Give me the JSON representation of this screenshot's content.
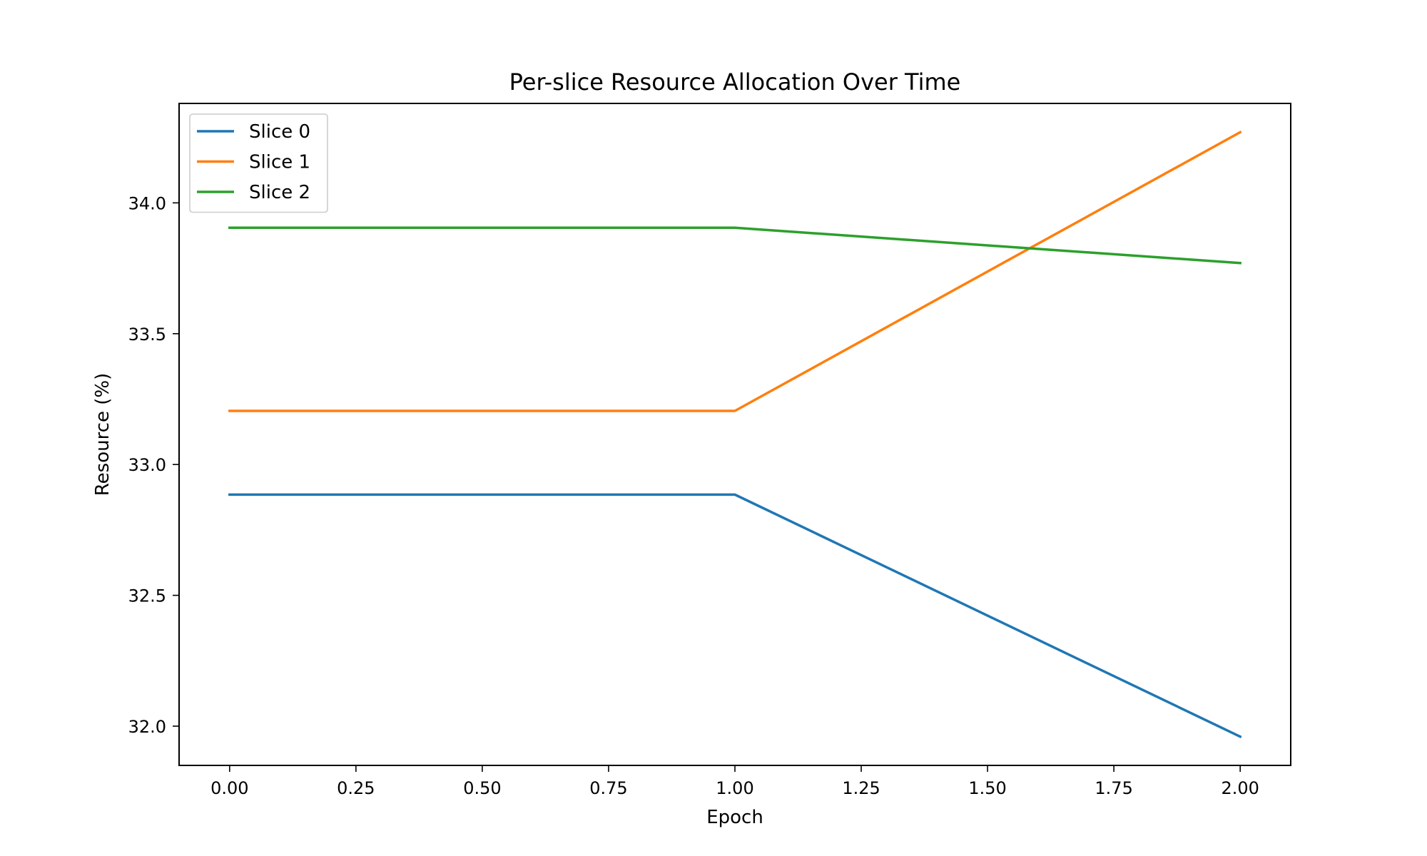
{
  "chart_data": {
    "type": "line",
    "title": "Per-slice Resource Allocation Over Time",
    "xlabel": "Epoch",
    "ylabel": "Resource (%)",
    "x": [
      0,
      1,
      2
    ],
    "xlim": [
      -0.1,
      2.1
    ],
    "ylim": [
      31.85,
      34.38
    ],
    "xticks": [
      0.0,
      0.25,
      0.5,
      0.75,
      1.0,
      1.25,
      1.5,
      1.75,
      2.0
    ],
    "xtick_labels": [
      "0.00",
      "0.25",
      "0.50",
      "0.75",
      "1.00",
      "1.25",
      "1.50",
      "1.75",
      "2.00"
    ],
    "yticks": [
      32.0,
      32.5,
      33.0,
      33.5,
      34.0
    ],
    "ytick_labels": [
      "32.0",
      "32.5",
      "33.0",
      "33.5",
      "34.0"
    ],
    "grid": false,
    "legend_position": "top-left",
    "series": [
      {
        "name": "Slice 0",
        "color": "#1f77b4",
        "values": [
          32.885,
          32.885,
          31.96
        ]
      },
      {
        "name": "Slice 1",
        "color": "#ff7f0e",
        "values": [
          33.205,
          33.205,
          34.27
        ]
      },
      {
        "name": "Slice 2",
        "color": "#2ca02c",
        "values": [
          33.905,
          33.905,
          33.77
        ]
      }
    ]
  }
}
